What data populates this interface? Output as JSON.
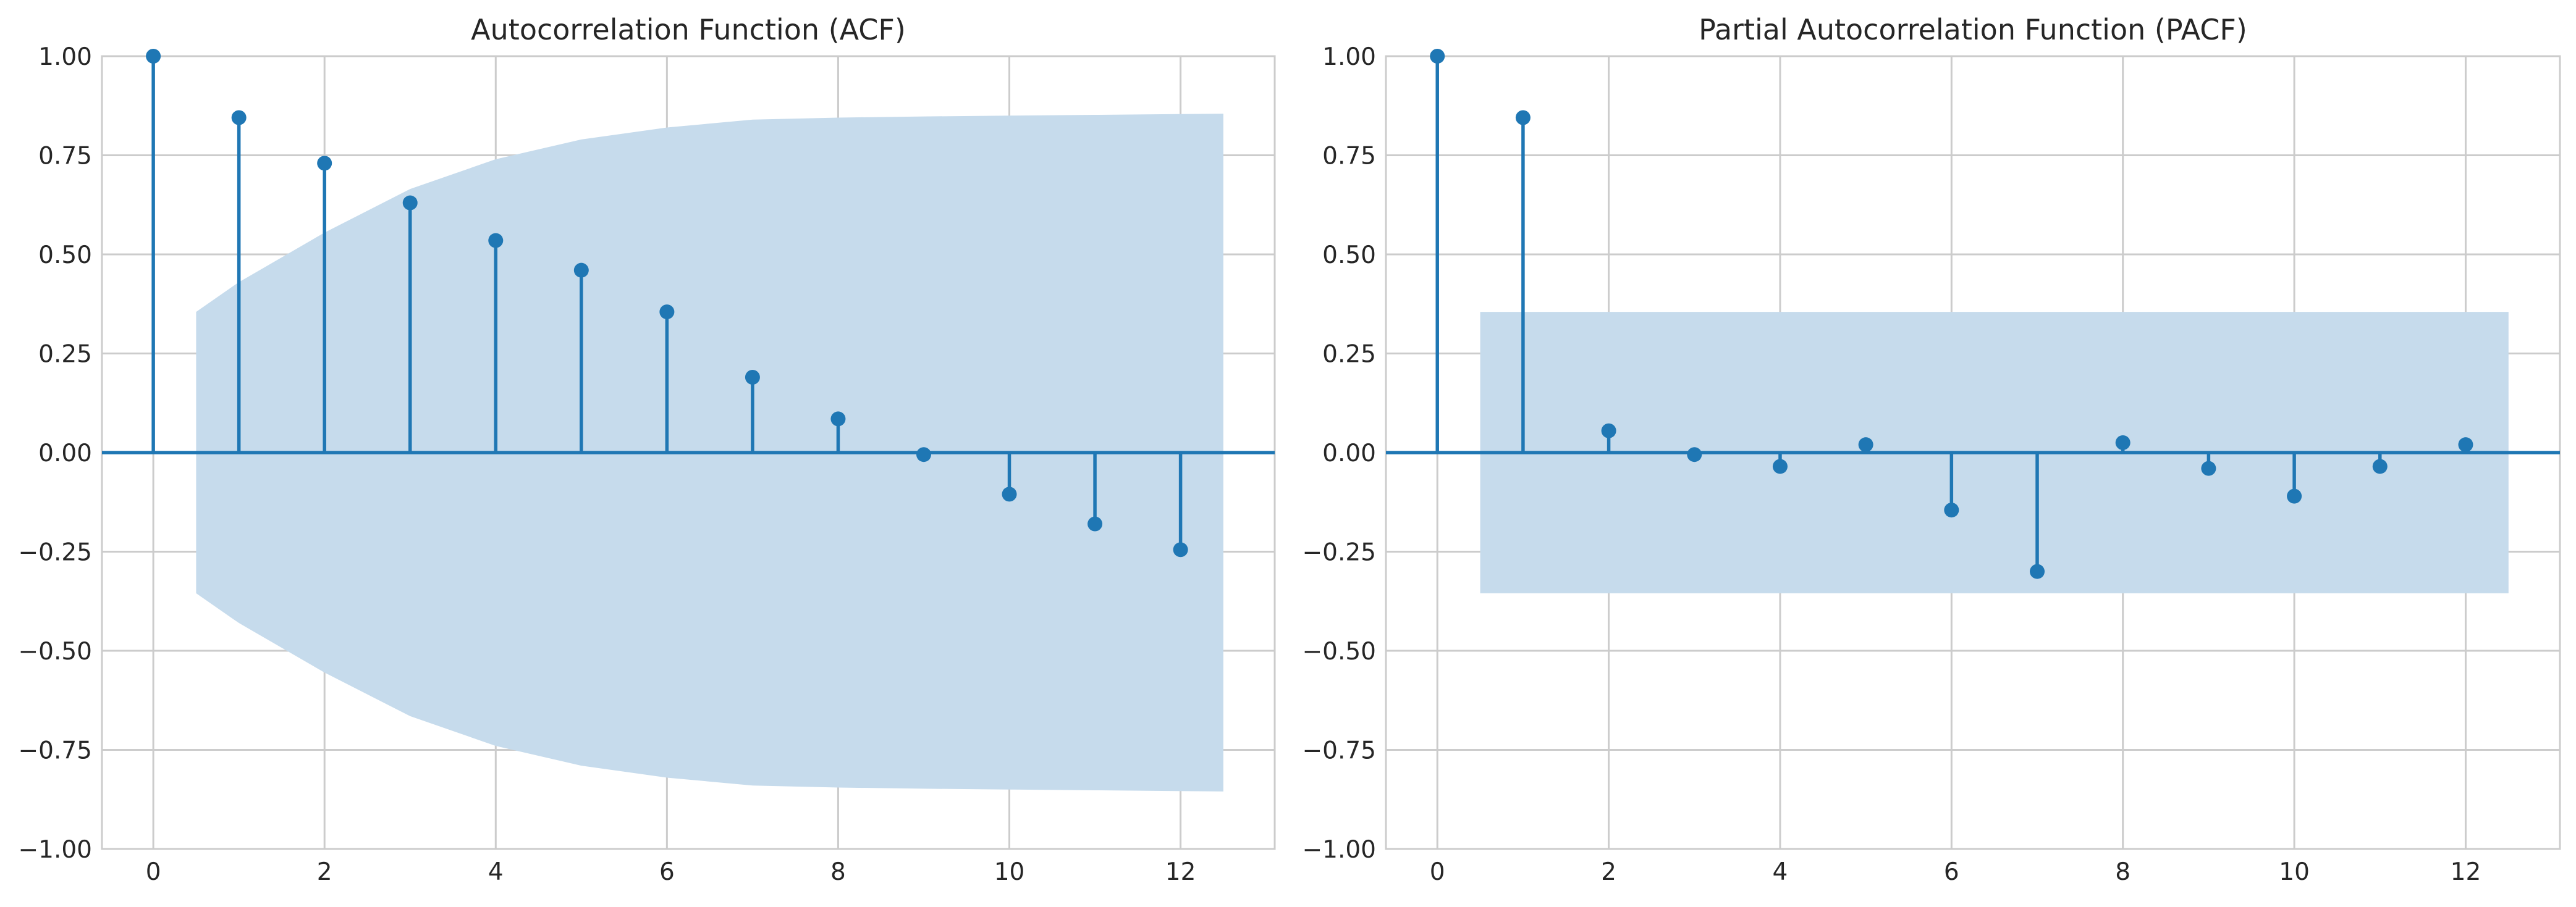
{
  "chart_data": [
    {
      "type": "stem",
      "title": "Autocorrelation Function (ACF)",
      "xlabel": "",
      "ylabel": "",
      "xlim": [
        -0.6,
        13.1
      ],
      "ylim": [
        -1.0,
        1.0
      ],
      "x_ticks": [
        0,
        2,
        4,
        6,
        8,
        10,
        12
      ],
      "y_ticks": [
        -1.0,
        -0.75,
        -0.5,
        -0.25,
        0.0,
        0.25,
        0.5,
        0.75,
        1.0
      ],
      "y_tick_labels": [
        "−1.00",
        "−0.75",
        "−0.50",
        "−0.25",
        "0.00",
        "0.25",
        "0.50",
        "0.75",
        "1.00"
      ],
      "grid": true,
      "lags": [
        0,
        1,
        2,
        3,
        4,
        5,
        6,
        7,
        8,
        9,
        10,
        11,
        12
      ],
      "values": [
        1.0,
        0.845,
        0.73,
        0.63,
        0.535,
        0.46,
        0.355,
        0.19,
        0.085,
        -0.005,
        -0.105,
        -0.18,
        -0.245
      ],
      "confidence_band": {
        "x": [
          0.5,
          1,
          2,
          3,
          4,
          5,
          6,
          7,
          8,
          9,
          10,
          11,
          12,
          12.5
        ],
        "upper": [
          0.355,
          0.43,
          0.555,
          0.665,
          0.74,
          0.79,
          0.82,
          0.84,
          0.845,
          0.848,
          0.85,
          0.852,
          0.854,
          0.855
        ],
        "lower": [
          -0.355,
          -0.43,
          -0.555,
          -0.665,
          -0.74,
          -0.79,
          -0.82,
          -0.84,
          -0.845,
          -0.848,
          -0.85,
          -0.852,
          -0.854,
          -0.855
        ]
      },
      "color": "#1f77b4",
      "band_color": "#c6dbec"
    },
    {
      "type": "stem",
      "title": "Partial Autocorrelation Function (PACF)",
      "xlabel": "",
      "ylabel": "",
      "xlim": [
        -0.6,
        13.1
      ],
      "ylim": [
        -1.0,
        1.0
      ],
      "x_ticks": [
        0,
        2,
        4,
        6,
        8,
        10,
        12
      ],
      "y_ticks": [
        -1.0,
        -0.75,
        -0.5,
        -0.25,
        0.0,
        0.25,
        0.5,
        0.75,
        1.0
      ],
      "y_tick_labels": [
        "−1.00",
        "−0.75",
        "−0.50",
        "−0.25",
        "0.00",
        "0.25",
        "0.50",
        "0.75",
        "1.00"
      ],
      "grid": true,
      "lags": [
        0,
        1,
        2,
        3,
        4,
        5,
        6,
        7,
        8,
        9,
        10,
        11,
        12
      ],
      "values": [
        1.0,
        0.845,
        0.055,
        -0.005,
        -0.035,
        0.02,
        -0.145,
        -0.3,
        0.025,
        -0.04,
        -0.11,
        -0.035,
        0.02
      ],
      "confidence_band": {
        "x": [
          0.5,
          12.5
        ],
        "upper": [
          0.355,
          0.355
        ],
        "lower": [
          -0.355,
          -0.355
        ]
      },
      "color": "#1f77b4",
      "band_color": "#c6dbec"
    }
  ]
}
